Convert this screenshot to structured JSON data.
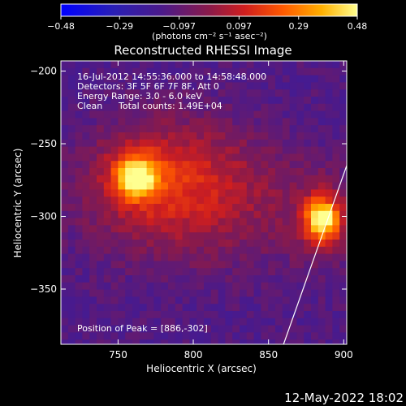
{
  "chart_data": {
    "type": "heatmap",
    "title": "Reconstructed RHESSI Image",
    "xlabel": "Heliocentric X (arcsec)",
    "ylabel": "Heliocentric Y (arcsec)",
    "xlim": [
      712,
      902
    ],
    "ylim": [
      -388,
      -193
    ],
    "xticks": [
      750,
      800,
      850,
      900
    ],
    "xtick_labels": [
      "750",
      "800",
      "850",
      "900"
    ],
    "yticks": [
      -200,
      -250,
      -300,
      -350
    ],
    "ytick_labels": [
      "−200",
      "−250",
      "−300",
      "−350"
    ],
    "colorbar": {
      "range": [
        -0.48,
        0.48
      ],
      "ticks": [
        -0.48,
        -0.29,
        -0.097,
        0.097,
        0.29,
        0.48
      ],
      "tick_labels": [
        "−0.48",
        "−0.29",
        "−0.097",
        "0.097",
        "0.29",
        "0.48"
      ],
      "unit_label": "(photons cm⁻² s⁻¹ asec⁻²)"
    },
    "annotations": {
      "time_range": "16-Jul-2012 14:55:36.000 to 14:58:48.000",
      "detectors": "Detectors: 3F 5F 6F 7F 8F, Att 0",
      "energy": "Energy Range: 3.0 - 6.0 keV",
      "method": "Clean",
      "counts": "Total counts: 1.49E+04",
      "peak": "Position of Peak = [886,-302]"
    },
    "sources": [
      {
        "x": 762,
        "y": -273,
        "peak": 0.42
      },
      {
        "x": 886,
        "y": -302,
        "peak": 0.48
      }
    ],
    "limb_line": [
      [
        902,
        -265
      ],
      [
        860,
        -388
      ]
    ],
    "footer_date": "12-May-2022 18:02"
  }
}
